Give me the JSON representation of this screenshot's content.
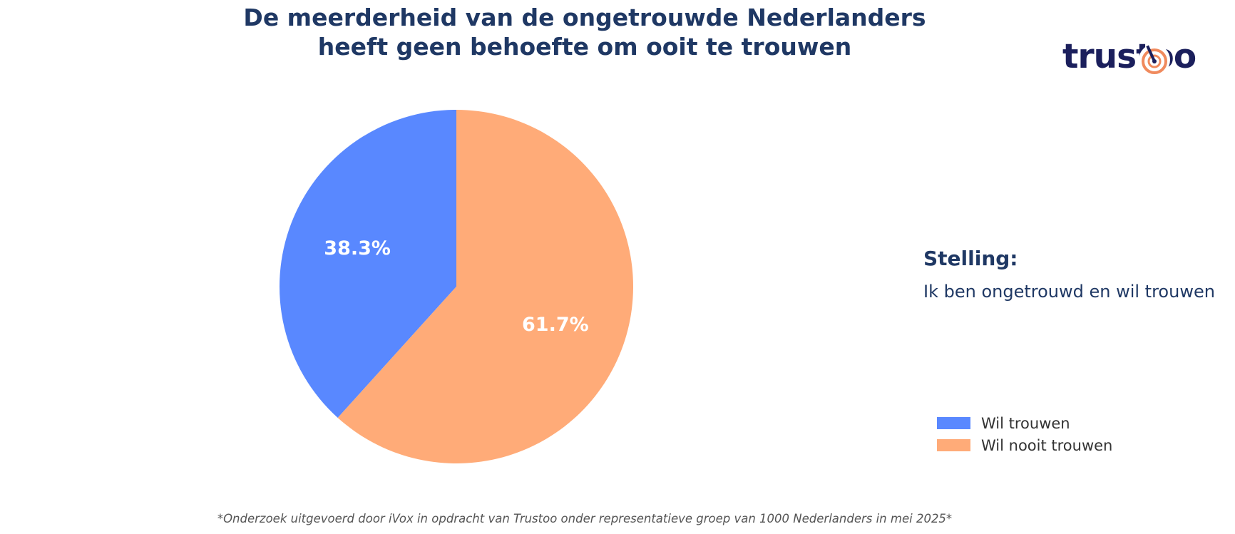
{
  "title": {
    "line1": "De meerderheid van de ongetrouwde Nederlanders",
    "line2": "heeft geen behoefte om ooit te trouwen"
  },
  "logo": {
    "text": "trustoo",
    "icon": "target-icon"
  },
  "statement": {
    "heading": "Stelling:",
    "text": "Ik ben ongetrouwd en wil trouwen"
  },
  "footnote": "*Onderzoek uitgevoerd door iVox in opdracht van Trustoo onder representatieve groep van 1000 Nederlanders in mei 2025*",
  "chart_data": {
    "type": "pie",
    "title": "De meerderheid van de ongetrouwde Nederlanders heeft geen behoefte om ooit te trouwen",
    "categories": [
      "Wil trouwen",
      "Wil nooit trouwen"
    ],
    "values": [
      38.3,
      61.7
    ],
    "labels": [
      "38.3%",
      "61.7%"
    ],
    "colors": [
      "#5988ff",
      "#ffab78"
    ],
    "legend_position": "bottom-right"
  }
}
